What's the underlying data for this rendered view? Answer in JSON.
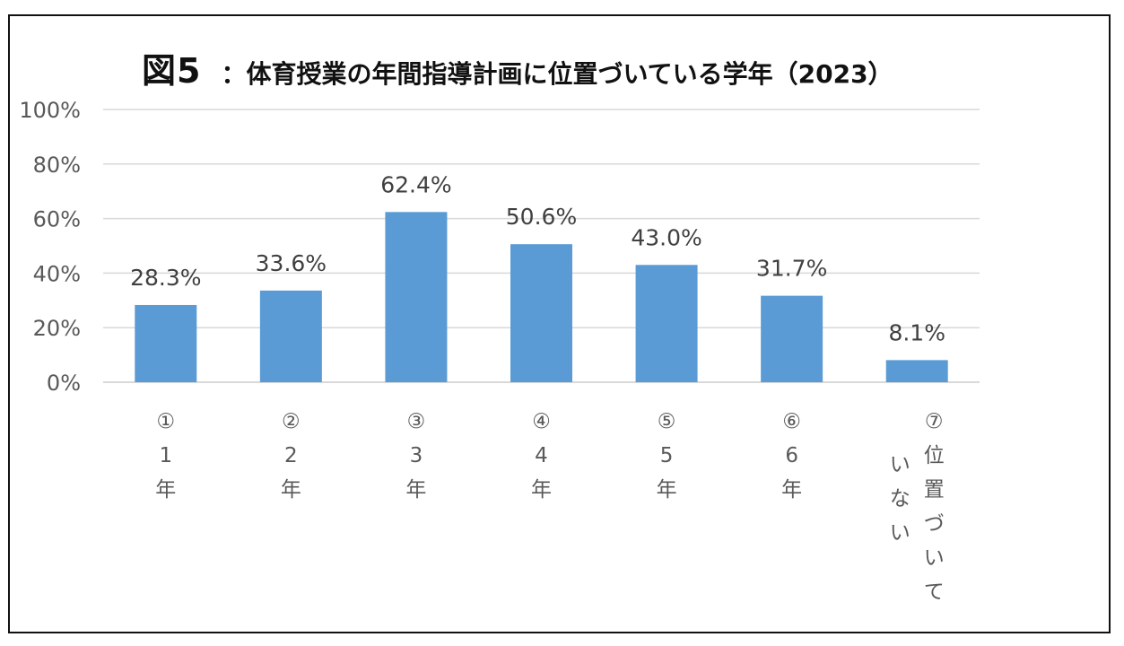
{
  "title": {
    "figure": "図5",
    "text": "：体育授業の年間指導計画に位置づいている学年（2023）"
  },
  "chart_data": {
    "type": "bar",
    "categories": [
      "①1年",
      "②2年",
      "③3年",
      "④4年",
      "⑤5年",
      "⑥6年",
      "⑦位置づいていない"
    ],
    "category_lines": [
      [
        [
          "①",
          "1",
          "年"
        ]
      ],
      [
        [
          "②",
          "2",
          "年"
        ]
      ],
      [
        [
          "③",
          "3",
          "年"
        ]
      ],
      [
        [
          "④",
          "4",
          "年"
        ]
      ],
      [
        [
          "⑤",
          "5",
          "年"
        ]
      ],
      [
        [
          "⑥",
          "6",
          "年"
        ]
      ],
      [
        [
          "⑦",
          "位",
          "置",
          "づ",
          "い",
          "て"
        ],
        [
          "い",
          "な",
          "い"
        ]
      ]
    ],
    "values": [
      28.3,
      33.6,
      62.4,
      50.6,
      43.0,
      31.7,
      8.1
    ],
    "data_labels": [
      "28.3%",
      "33.6%",
      "62.4%",
      "50.6%",
      "43.0%",
      "31.7%",
      "8.1%"
    ],
    "ylim": [
      0,
      100
    ],
    "yticks": [
      0,
      20,
      40,
      60,
      80,
      100
    ],
    "ytick_labels": [
      "0%",
      "20%",
      "40%",
      "60%",
      "80%",
      "100%"
    ],
    "grid": true,
    "legend": "none",
    "bar_color": "#5b9bd5",
    "grid_color": "#d9d9d9"
  }
}
